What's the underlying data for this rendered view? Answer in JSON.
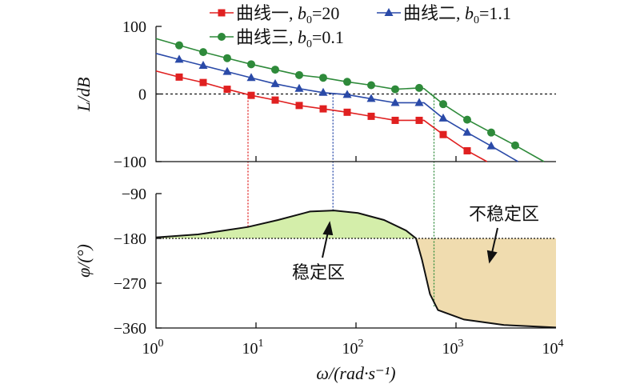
{
  "chart_data": [
    {
      "type": "line",
      "title": "",
      "ylabel": "L/dB",
      "xscale": "log",
      "xlim_log10": [
        0,
        4
      ],
      "ylim": [
        -100,
        100
      ],
      "yticks": [
        "100",
        "0",
        "−100"
      ],
      "yticks_values": [
        100,
        0,
        -100
      ],
      "reference_line": 0,
      "legend": "top",
      "series": [
        {
          "name": "曲线一, b0=20",
          "label": "曲线一, ",
          "param": "b",
          "sub": "0",
          "value": "=20",
          "color": "#e02020",
          "marker": "square",
          "log10_omega": [
            0,
            0.232,
            0.472,
            0.712,
            0.952,
            1.192,
            1.432,
            1.672,
            1.912,
            2.152,
            2.392,
            2.632,
            2.68,
            2.872,
            3.112,
            3.31
          ],
          "dB": [
            34,
            25,
            17,
            7,
            -2,
            -9,
            -17,
            -22,
            -27,
            -33,
            -39,
            -39,
            -39,
            -60,
            -84,
            -100
          ],
          "marker_idx": [
            1,
            2,
            3,
            4,
            5,
            6,
            7,
            8,
            9,
            10,
            11,
            13,
            14
          ]
        },
        {
          "name": "曲线二, b0=1.1",
          "label": "曲线二, ",
          "param": "b",
          "sub": "0",
          "value": "=1.1",
          "color": "#2a4aa8",
          "marker": "triangle",
          "log10_omega": [
            0,
            0.232,
            0.472,
            0.712,
            0.952,
            1.192,
            1.432,
            1.672,
            1.912,
            2.152,
            2.392,
            2.632,
            2.68,
            2.872,
            3.112,
            3.352,
            3.62
          ],
          "dB": [
            60,
            51,
            42,
            33,
            24,
            15,
            8,
            2,
            -1,
            -7,
            -13,
            -13,
            -13,
            -36,
            -57,
            -77,
            -100
          ],
          "marker_idx": [
            1,
            2,
            3,
            4,
            5,
            6,
            7,
            8,
            9,
            10,
            11,
            13,
            14,
            15
          ]
        },
        {
          "name": "曲线三, b0=0.1",
          "label": "曲线三, ",
          "param": "b",
          "sub": "0",
          "value": "=0.1",
          "color": "#2e8a3a",
          "marker": "circle",
          "log10_omega": [
            0,
            0.232,
            0.472,
            0.712,
            0.952,
            1.192,
            1.432,
            1.672,
            1.912,
            2.152,
            2.392,
            2.632,
            2.68,
            2.872,
            3.112,
            3.352,
            3.592,
            3.88
          ],
          "dB": [
            82,
            72,
            62,
            53,
            44,
            36,
            28,
            24,
            18,
            13,
            7,
            9,
            8,
            -15,
            -38,
            -57,
            -76,
            -100
          ],
          "marker_idx": [
            1,
            2,
            3,
            4,
            5,
            6,
            7,
            8,
            9,
            10,
            11,
            13,
            14,
            15,
            16
          ]
        }
      ],
      "crossover_log10_omega": [
        0.92,
        1.77,
        2.78
      ]
    },
    {
      "type": "line",
      "ylabel": "φ/(°)",
      "xlabel": "ω/(rad·s⁻¹)",
      "xscale": "log",
      "xlim_log10": [
        0,
        4
      ],
      "xticks": [
        {
          "base": "10",
          "exp": "0"
        },
        {
          "base": "10",
          "exp": "1"
        },
        {
          "base": "10",
          "exp": "2"
        },
        {
          "base": "10",
          "exp": "3"
        },
        {
          "base": "10",
          "exp": "4"
        }
      ],
      "ylim": [
        -360,
        -90
      ],
      "yticks": [
        "−90",
        "−180",
        "−270",
        "−360"
      ],
      "yticks_values": [
        -90,
        -180,
        -270,
        -360
      ],
      "reference_line": -180,
      "series": [
        {
          "name": "phase",
          "color": "#111111",
          "log10_omega": [
            0,
            0.42,
            0.92,
            1.22,
            1.54,
            1.78,
            2.02,
            2.28,
            2.5,
            2.6,
            2.66,
            2.74,
            2.82,
            3.08,
            3.48,
            4.0
          ],
          "deg": [
            -178,
            -172,
            -157,
            -143,
            -126,
            -124,
            -129,
            -143,
            -164,
            -180,
            -223,
            -292,
            -324,
            -343,
            -354,
            -359
          ]
        }
      ],
      "regions": [
        {
          "label": "稳定区",
          "color": "#d4eeaa"
        },
        {
          "label": "不稳定区",
          "color": "#f0dcaf"
        }
      ]
    }
  ]
}
